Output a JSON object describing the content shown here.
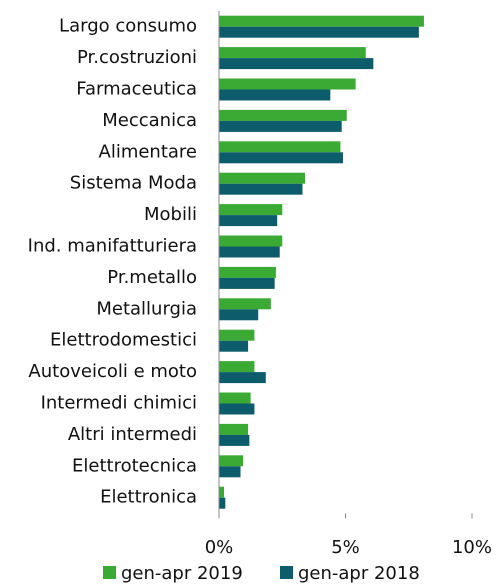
{
  "chart_data": {
    "type": "hbar",
    "categories": [
      "Largo consumo",
      "Pr.costruzioni",
      "Farmaceutica",
      "Meccanica",
      "Alimentare",
      "Sistema Moda",
      "Mobili",
      "Ind. manifatturiera",
      "Pr.metallo",
      "Metallurgia",
      "Elettrodomestici",
      "Autoveicoli e moto",
      "Intermedi chimici",
      "Altri intermedi",
      "Elettrotecnica",
      "Elettronica"
    ],
    "series": [
      {
        "name": "gen-apr 2019",
        "color": "#3aaa35",
        "values": [
          8.1,
          5.8,
          5.4,
          5.05,
          4.8,
          3.4,
          2.5,
          2.5,
          2.25,
          2.05,
          1.4,
          1.4,
          1.25,
          1.15,
          0.95,
          0.2
        ]
      },
      {
        "name": "gen-apr 2018",
        "color": "#0d5c6b",
        "values": [
          7.9,
          6.1,
          4.4,
          4.85,
          4.9,
          3.3,
          2.3,
          2.4,
          2.2,
          1.55,
          1.15,
          1.85,
          1.4,
          1.2,
          0.85,
          0.25
        ]
      }
    ],
    "xlim": [
      0,
      10
    ],
    "xticks": [
      {
        "value": 0,
        "label": "0%"
      },
      {
        "value": 5,
        "label": "5%"
      },
      {
        "value": 10,
        "label": "10%"
      }
    ]
  }
}
